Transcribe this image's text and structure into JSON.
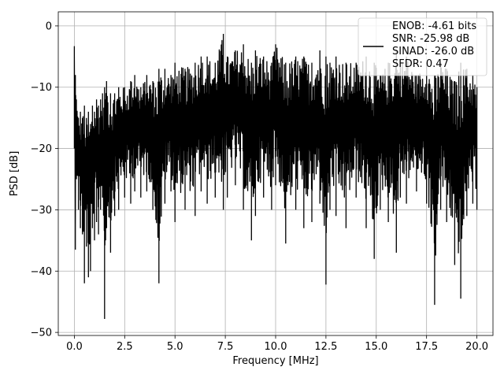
{
  "chart_data": {
    "type": "line",
    "xlabel": "Frequency [MHz]",
    "ylabel": "PSD [dB]",
    "xlim": [
      -0.8,
      20.8
    ],
    "ylim": [
      -50.5,
      2.3
    ],
    "xticks": [
      0.0,
      2.5,
      5.0,
      7.5,
      10.0,
      12.5,
      15.0,
      17.5,
      20.0
    ],
    "xtick_labels": [
      "0.0",
      "2.5",
      "5.0",
      "7.5",
      "10.0",
      "12.5",
      "15.0",
      "17.5",
      "20.0"
    ],
    "yticks": [
      0,
      -10,
      -20,
      -30,
      -40,
      -50
    ],
    "ytick_labels": [
      "0",
      "−10",
      "−20",
      "−30",
      "−40",
      "−50"
    ],
    "grid": true,
    "legend": {
      "location": "top-right",
      "entries": [
        "ENOB: -4.61 bits",
        "SNR: -25.98 dB",
        "SINAD: -26.0 dB",
        "SFDR: 0.47"
      ]
    },
    "series": [
      {
        "color": "#000000",
        "x": [
          0.0,
          0.05,
          0.1,
          0.2,
          0.3,
          0.4,
          0.5,
          0.6,
          0.7,
          0.8,
          0.9,
          1.0,
          1.1,
          1.2,
          1.3,
          1.4,
          1.5,
          1.55,
          1.6,
          1.8,
          2.0,
          2.2,
          2.5,
          2.8,
          3.0,
          3.3,
          3.6,
          3.9,
          4.2,
          4.5,
          4.8,
          5.0,
          5.5,
          6.0,
          6.3,
          6.6,
          7.0,
          7.4,
          7.6,
          8.0,
          8.4,
          8.8,
          9.0,
          9.4,
          9.8,
          10.0,
          10.5,
          11.0,
          11.4,
          11.8,
          12.2,
          12.5,
          12.7,
          13.0,
          13.5,
          14.0,
          14.5,
          14.9,
          15.2,
          15.6,
          16.0,
          16.2,
          16.5,
          17.0,
          17.5,
          17.9,
          18.2,
          18.5,
          18.9,
          19.2,
          19.5,
          19.8,
          20.0
        ],
        "upper": [
          -3.3,
          -8,
          -12,
          -15,
          -14,
          -15,
          -13,
          -15,
          -14,
          -16,
          -13,
          -14,
          -12,
          -13,
          -12,
          -11,
          -10,
          -12,
          -9,
          -11,
          -11,
          -10,
          -10,
          -9,
          -8,
          -10,
          -8,
          -9,
          -7,
          -7,
          -8,
          -6,
          -7,
          -6,
          -5,
          -5,
          -6,
          -1.3,
          -5,
          -4,
          -3,
          -6,
          -4,
          -5,
          -6,
          -3,
          -6,
          -5,
          -5,
          -6,
          -4,
          -5,
          -6,
          -5,
          -6,
          -6,
          -5,
          -6,
          -8,
          -6,
          -4,
          -6,
          -5,
          -8,
          -6,
          -8,
          -6,
          -7,
          -9,
          -6,
          -7,
          -8,
          -10
        ],
        "lower": [
          -20,
          -36.5,
          -25,
          -30,
          -33,
          -34,
          -42,
          -36,
          -41,
          -40,
          -33,
          -35,
          -32,
          -34,
          -30,
          -28,
          -47.8,
          -35,
          -33,
          -37,
          -31,
          -30,
          -28,
          -29,
          -27,
          -28,
          -27,
          -30,
          -42,
          -29,
          -27,
          -32,
          -30,
          -31,
          -27,
          -29,
          -28,
          -30,
          -28,
          -26,
          -30,
          -35,
          -31,
          -28,
          -30,
          -26,
          -35.5,
          -30,
          -33,
          -32,
          -29,
          -42.2,
          -30,
          -31,
          -33,
          -28,
          -33,
          -38,
          -30,
          -32,
          -37,
          -28,
          -29,
          -27,
          -29,
          -45.5,
          -30,
          -32,
          -39,
          -44.5,
          -31,
          -29,
          -30
        ]
      }
    ]
  }
}
